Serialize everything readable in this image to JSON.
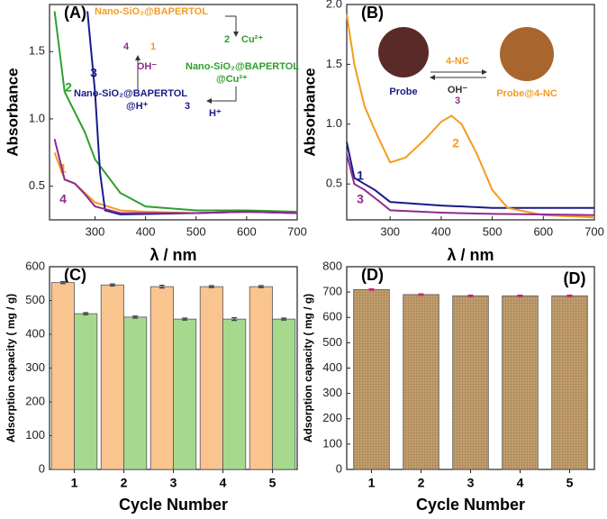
{
  "chart_data": [
    {
      "type": "line",
      "panel_label": "(A)",
      "xlabel": "λ / nm",
      "ylabel": "Absorbance",
      "xlim": [
        210,
        700
      ],
      "ylim": [
        0.25,
        1.85
      ],
      "xticks": [
        300,
        400,
        500,
        600,
        700
      ],
      "yticks": [
        0.5,
        {
          "value": 1,
          "label": "1.0"
        },
        1.5
      ],
      "series": [
        {
          "name": "1",
          "color": "#f39c1f",
          "x": [
            220,
            240,
            260,
            280,
            300,
            350,
            400,
            500,
            600,
            700
          ],
          "values": [
            0.75,
            0.55,
            0.52,
            0.45,
            0.38,
            0.32,
            0.31,
            0.3,
            0.31,
            0.3
          ]
        },
        {
          "name": "2",
          "color": "#2ca02c",
          "x": [
            220,
            240,
            260,
            280,
            300,
            350,
            400,
            500,
            600,
            700
          ],
          "values": [
            1.8,
            1.2,
            1.05,
            0.9,
            0.7,
            0.45,
            0.35,
            0.32,
            0.32,
            0.31
          ]
        },
        {
          "name": "3",
          "color": "#1a1a8c",
          "x": [
            285,
            300,
            310,
            320,
            350,
            500,
            600,
            700
          ],
          "values": [
            1.8,
            1.2,
            0.6,
            0.32,
            0.29,
            0.3,
            0.31,
            0.3
          ]
        },
        {
          "name": "4",
          "color": "#8e2b8e",
          "x": [
            220,
            240,
            260,
            280,
            300,
            350,
            500,
            600,
            700
          ],
          "values": [
            0.85,
            0.55,
            0.52,
            0.44,
            0.35,
            0.3,
            0.3,
            0.31,
            0.3
          ]
        }
      ],
      "scheme": [
        {
          "text": "Nano-SiO₂@BAPERTOL",
          "color": "#f39c1f"
        },
        {
          "text": "1",
          "color": "#f39c1f"
        },
        {
          "text": "4",
          "color": "#8e2b8e"
        },
        {
          "text": "OH⁻",
          "color": "#8e2b8e"
        },
        {
          "text": "Cu²⁺",
          "color": "#2ca02c"
        },
        {
          "text": "2",
          "color": "#2ca02c"
        },
        {
          "text": "Nano-SiO₂@BAPERTOL",
          "color": "#2ca02c"
        },
        {
          "text": "@Cu²⁺",
          "color": "#2ca02c"
        },
        {
          "text": "3",
          "color": "#1a1a8c"
        },
        {
          "text": "Nano-SiO₂@BAPERTOL",
          "color": "#1a1a8c"
        },
        {
          "text": "@H⁺",
          "color": "#1a1a8c"
        },
        {
          "text": "H⁺",
          "color": "#1a1a8c"
        }
      ]
    },
    {
      "type": "line",
      "panel_label": "(B)",
      "xlabel": "λ / nm",
      "ylabel": "Absorbance",
      "xlim": [
        215,
        700
      ],
      "ylim": [
        0.2,
        2.0
      ],
      "xticks": [
        300,
        400,
        500,
        600,
        700
      ],
      "yticks": [
        0.5,
        {
          "value": 1,
          "label": "1.0"
        },
        1.5,
        {
          "value": 2,
          "label": "2.0"
        }
      ],
      "series": [
        {
          "name": "1",
          "color": "#1a1a8c",
          "x": [
            215,
            230,
            250,
            270,
            300,
            400,
            500,
            600,
            700
          ],
          "values": [
            0.85,
            0.55,
            0.5,
            0.45,
            0.35,
            0.32,
            0.3,
            0.3,
            0.3
          ]
        },
        {
          "name": "2",
          "color": "#f39c1f",
          "x": [
            215,
            230,
            250,
            270,
            300,
            330,
            370,
            400,
            420,
            440,
            470,
            500,
            530,
            600,
            700
          ],
          "values": [
            1.92,
            1.5,
            1.15,
            0.95,
            0.68,
            0.72,
            0.88,
            1.02,
            1.07,
            1.0,
            0.75,
            0.45,
            0.3,
            0.24,
            0.22
          ]
        },
        {
          "name": "3",
          "color": "#8e2b8e",
          "x": [
            215,
            230,
            250,
            280,
            300,
            400,
            500,
            700
          ],
          "values": [
            0.75,
            0.5,
            0.45,
            0.35,
            0.28,
            0.26,
            0.25,
            0.24
          ]
        }
      ],
      "scheme": [
        {
          "text": "4-NC",
          "color": "#f39c1f"
        },
        {
          "text": "OH⁻",
          "color": "#333333"
        },
        {
          "text": "3",
          "color": "#8e2b8e"
        },
        {
          "text": "Probe",
          "color": "#1a1a8c"
        },
        {
          "text": "Probe@4-NC",
          "color": "#f39c1f"
        }
      ]
    },
    {
      "type": "bar",
      "panel_label": "(C)",
      "xlabel": "Cycle Number",
      "ylabel": "Adsorption capacity ( mg / g)",
      "categories": [
        "1",
        "2",
        "3",
        "4",
        "5"
      ],
      "ylim": [
        0,
        600
      ],
      "yticks": [
        0,
        100,
        200,
        300,
        400,
        500,
        600
      ],
      "series": [
        {
          "color": "#fac48f",
          "values": [
            553,
            546,
            541,
            541,
            541
          ],
          "errors": [
            3,
            3,
            4,
            3,
            3
          ]
        },
        {
          "color": "#a6d98e",
          "values": [
            461,
            451,
            445,
            445,
            445
          ],
          "errors": [
            3,
            3,
            3,
            4,
            3
          ]
        }
      ]
    },
    {
      "type": "bar",
      "panel_label": "(D)",
      "annotation": "(D)",
      "xlabel": "Cycle Number",
      "ylabel": "Adsorption capacity ( mg / g)",
      "categories": [
        "1",
        "2",
        "3",
        "4",
        "5"
      ],
      "ylim": [
        0,
        800
      ],
      "yticks": [
        0,
        100,
        200,
        300,
        400,
        500,
        600,
        700,
        800
      ],
      "series": [
        {
          "color": "#c4a070",
          "values": [
            710,
            690,
            685,
            685,
            685
          ],
          "errors": [
            3,
            3,
            3,
            3,
            3
          ]
        }
      ]
    }
  ]
}
